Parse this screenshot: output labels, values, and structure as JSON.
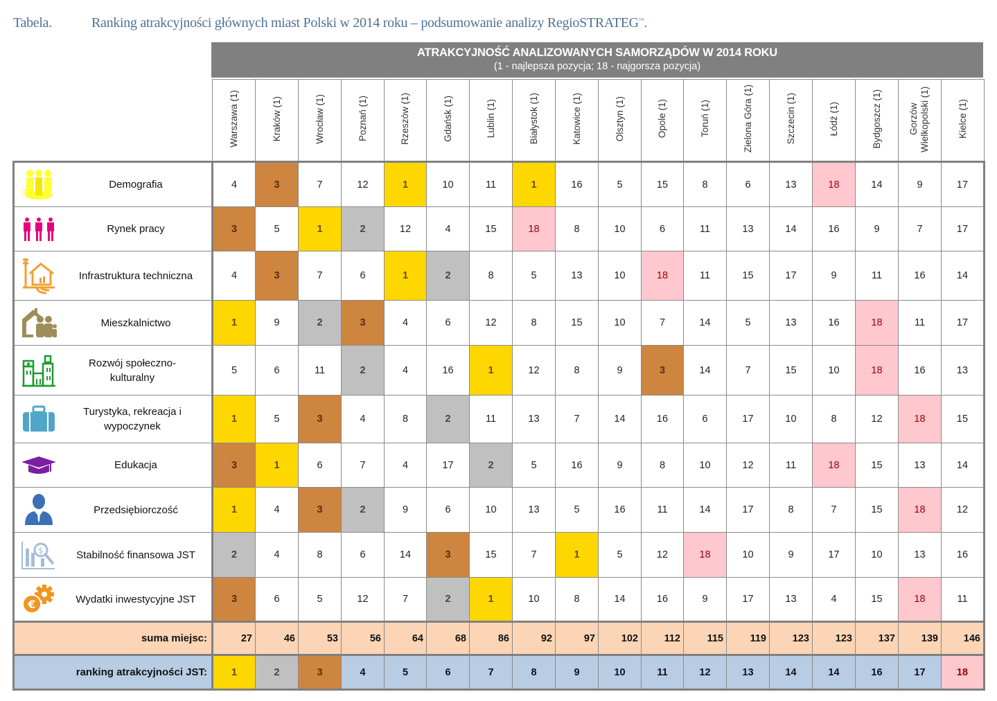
{
  "caption": {
    "label": "Tabela.",
    "title": "Ranking atrakcyjności głównych miast Polski w 2014 roku – podsumowanie analizy RegioSTRATEG",
    "tm": "™",
    "end": "."
  },
  "header": {
    "title": "ATRAKCYJNOŚĆ ANALIZOWANYCH SAMORZĄDÓW W 2014 ROKU",
    "subtitle": "(1 - najlepsza pozycja; 18 - najgorsza pozycja)"
  },
  "cities": [
    "Warszawa (1)",
    "Kraków (1)",
    "Wrocław (1)",
    "Poznań (1)",
    "Rzeszów (1)",
    "Gdańsk (1)",
    "Lublin (1)",
    "Białystok (1)",
    "Katowice (1)",
    "Olsztyn (1)",
    "Opole (1)",
    "Toruń (1)",
    "Zielona Góra (1)",
    "Szczecin (1)",
    "Łódź (1)",
    "Bydgoszcz (1)",
    "Gorzów Wielkopolski (1)",
    "Kielce (1)"
  ],
  "colors": {
    "gold": "#ffd700",
    "silver": "#c0c0c0",
    "bronze": "#cd853f",
    "worst": "#ffc7ce",
    "sum_row": "#fbd5b5",
    "rank_row": "#b8cce4",
    "header_band": "#808080"
  },
  "categories": [
    {
      "label": "Demografia",
      "icon": "people-group-icon",
      "values": [
        4,
        3,
        7,
        12,
        1,
        10,
        11,
        1,
        16,
        5,
        15,
        8,
        6,
        13,
        18,
        14,
        9,
        17
      ]
    },
    {
      "label": "Rynek pracy",
      "icon": "workers-icon",
      "values": [
        3,
        5,
        1,
        2,
        12,
        4,
        15,
        18,
        8,
        10,
        6,
        11,
        13,
        14,
        16,
        9,
        7,
        17
      ]
    },
    {
      "label": "Infrastruktura techniczna",
      "icon": "house-utilities-icon",
      "values": [
        4,
        3,
        7,
        6,
        1,
        2,
        8,
        5,
        13,
        10,
        18,
        11,
        15,
        17,
        9,
        11,
        16,
        14
      ]
    },
    {
      "label": "Mieszkalnictwo",
      "icon": "family-house-icon",
      "values": [
        1,
        9,
        2,
        3,
        4,
        6,
        12,
        8,
        15,
        10,
        7,
        14,
        5,
        13,
        16,
        18,
        11,
        17
      ]
    },
    {
      "label": "Rozwój społeczno-kulturalny",
      "icon": "hospital-buildings-icon",
      "values": [
        5,
        6,
        11,
        2,
        4,
        16,
        1,
        12,
        8,
        9,
        3,
        14,
        7,
        15,
        10,
        18,
        16,
        13
      ]
    },
    {
      "label": "Turystyka, rekreacja i wypoczynek",
      "icon": "suitcase-icon",
      "values": [
        1,
        5,
        3,
        4,
        8,
        2,
        11,
        13,
        7,
        14,
        16,
        6,
        17,
        10,
        8,
        12,
        18,
        15
      ]
    },
    {
      "label": "Edukacja",
      "icon": "graduation-cap-icon",
      "values": [
        3,
        1,
        6,
        7,
        4,
        17,
        2,
        5,
        16,
        9,
        8,
        10,
        12,
        11,
        18,
        15,
        13,
        14
      ]
    },
    {
      "label": "Przedsiębiorczość",
      "icon": "businessman-icon",
      "values": [
        1,
        4,
        3,
        2,
        9,
        6,
        10,
        13,
        5,
        16,
        11,
        14,
        17,
        8,
        7,
        15,
        18,
        12
      ]
    },
    {
      "label": "Stabilność finansowa JST",
      "icon": "finance-analysis-icon",
      "values": [
        2,
        4,
        8,
        6,
        14,
        3,
        15,
        7,
        1,
        5,
        12,
        18,
        10,
        9,
        17,
        10,
        13,
        16
      ]
    },
    {
      "label": "Wydatki inwestycyjne JST",
      "icon": "euro-gear-icon",
      "values": [
        3,
        6,
        5,
        12,
        7,
        2,
        1,
        10,
        8,
        14,
        16,
        9,
        17,
        13,
        4,
        15,
        18,
        11
      ]
    }
  ],
  "sum_row": {
    "label": "suma miejsc:",
    "values": [
      27,
      46,
      53,
      56,
      64,
      68,
      86,
      92,
      97,
      102,
      112,
      115,
      119,
      123,
      123,
      137,
      139,
      146
    ]
  },
  "rank_row": {
    "label": "ranking atrakcyjności JST:",
    "values": [
      1,
      2,
      3,
      4,
      5,
      6,
      7,
      8,
      9,
      10,
      11,
      12,
      13,
      14,
      14,
      16,
      17,
      18
    ]
  }
}
